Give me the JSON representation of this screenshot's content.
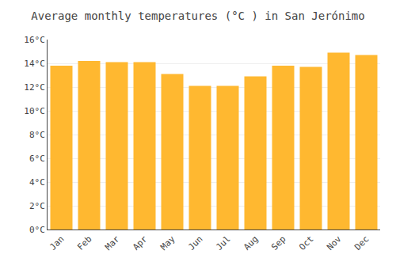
{
  "chart_data": {
    "type": "bar",
    "title": "Average monthly temperatures (°C ) in San Jerónimo",
    "categories": [
      "Jan",
      "Feb",
      "Mar",
      "Apr",
      "May",
      "Jun",
      "Jul",
      "Aug",
      "Sep",
      "Oct",
      "Nov",
      "Dec"
    ],
    "values": [
      13.8,
      14.2,
      14.1,
      14.1,
      13.1,
      12.1,
      12.1,
      12.9,
      13.8,
      13.7,
      14.9,
      14.7
    ],
    "color": "#FFB830",
    "ylim": [
      0,
      16
    ],
    "yticks": [
      {
        "value": 0,
        "label": "0°C"
      },
      {
        "value": 2,
        "label": "2°C"
      },
      {
        "value": 4,
        "label": "4°C"
      },
      {
        "value": 6,
        "label": "6°C"
      },
      {
        "value": 8,
        "label": "8°C"
      },
      {
        "value": 10,
        "label": "10°C"
      },
      {
        "value": 12,
        "label": "12°C"
      },
      {
        "value": 14,
        "label": "14°C"
      },
      {
        "value": 16,
        "label": "16°C"
      }
    ],
    "grid": true
  }
}
